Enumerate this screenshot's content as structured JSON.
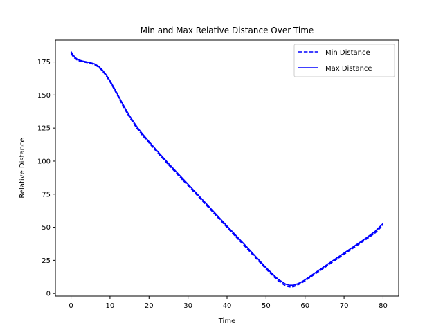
{
  "chart_data": {
    "type": "line",
    "title": "Min and Max Relative Distance Over Time",
    "xlabel": "Time",
    "ylabel": "Relative Distance",
    "xlim": [
      -4.0,
      84.0
    ],
    "ylim": [
      -2.0,
      191.5
    ],
    "xticks": [
      0,
      10,
      20,
      30,
      40,
      50,
      60,
      70,
      80
    ],
    "yticks": [
      0,
      25,
      50,
      75,
      100,
      125,
      150,
      175
    ],
    "grid": false,
    "legend_position": "top-right",
    "series": [
      {
        "name": "Min Distance",
        "style": "dashed",
        "color": "#0000ff",
        "x": [
          0,
          0.5,
          1,
          1.5,
          2,
          3,
          4,
          5,
          6,
          7,
          8,
          9,
          10,
          11,
          12,
          13,
          14,
          15,
          16,
          17,
          18,
          20,
          22,
          25,
          30,
          35,
          40,
          45,
          50,
          53,
          55,
          56,
          57,
          58,
          59,
          60,
          61,
          62,
          64,
          66,
          68,
          70,
          72,
          74,
          76,
          78,
          80
        ],
        "y": [
          181.5,
          179.3,
          177.8,
          176.6,
          175.9,
          175.1,
          174.6,
          174.0,
          173.0,
          171.2,
          168.4,
          164.6,
          160.0,
          154.7,
          149.2,
          143.5,
          138.2,
          133.3,
          128.7,
          124.5,
          120.6,
          113.8,
          107.0,
          97.2,
          81.5,
          65.8,
          49.9,
          34.3,
          18.5,
          9.8,
          5.8,
          5.0,
          5.1,
          6.3,
          7.8,
          9.5,
          11.5,
          13.6,
          17.5,
          21.6,
          25.6,
          29.6,
          33.6,
          37.6,
          41.6,
          45.8,
          51.6
        ]
      },
      {
        "name": "Max Distance",
        "style": "solid",
        "color": "#0000ff",
        "x": [
          0,
          0.5,
          1,
          1.5,
          2,
          3,
          4,
          5,
          6,
          7,
          8,
          9,
          10,
          11,
          12,
          13,
          14,
          15,
          16,
          17,
          18,
          20,
          22,
          25,
          30,
          35,
          40,
          45,
          50,
          53,
          55,
          56,
          57,
          58,
          59,
          60,
          61,
          62,
          64,
          66,
          68,
          70,
          72,
          74,
          76,
          78,
          80
        ],
        "y": [
          182.8,
          180.4,
          178.6,
          177.3,
          176.5,
          175.6,
          175.0,
          174.4,
          173.5,
          171.8,
          169.0,
          165.3,
          160.8,
          155.6,
          150.2,
          144.6,
          139.3,
          134.4,
          129.8,
          125.6,
          121.7,
          114.8,
          108.0,
          98.2,
          82.5,
          66.8,
          50.9,
          35.3,
          19.5,
          10.9,
          7.1,
          6.2,
          6.2,
          7.2,
          8.5,
          10.3,
          12.3,
          14.4,
          18.4,
          22.5,
          26.5,
          30.5,
          34.5,
          38.5,
          42.6,
          47.0,
          52.8
        ]
      }
    ]
  }
}
